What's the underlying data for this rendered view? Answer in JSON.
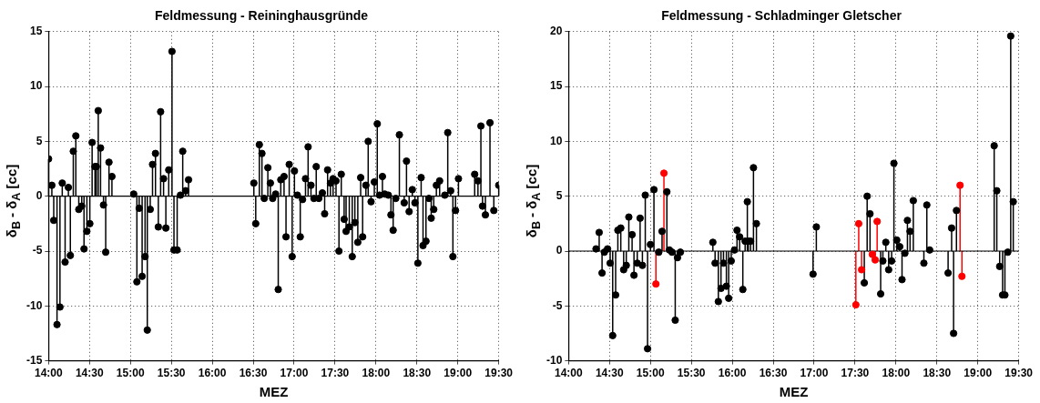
{
  "chart_data": [
    {
      "type": "lollipop",
      "title": "Feldmessung - Reininghausgründe",
      "xlabel": "MEZ",
      "ylabel": "δ$_{B}$ - δ$_{A}$ [cc]",
      "xlim": [
        14,
        19.5
      ],
      "xticks": [
        {
          "value": 14,
          "label": "14:00"
        },
        {
          "value": 14.5,
          "label": "14:30"
        },
        {
          "value": 15,
          "label": "15:00"
        },
        {
          "value": 15.5,
          "label": "15:30"
        },
        {
          "value": 16,
          "label": "16:00"
        },
        {
          "value": 16.5,
          "label": "16:30"
        },
        {
          "value": 17,
          "label": "17:00"
        },
        {
          "value": 17.5,
          "label": "17:30"
        },
        {
          "value": 18,
          "label": "18:00"
        },
        {
          "value": 18.5,
          "label": "18:30"
        },
        {
          "value": 19,
          "label": "19:00"
        },
        {
          "value": 19.5,
          "label": "19:30"
        }
      ],
      "ylim": [
        -15,
        15
      ],
      "yticks": [
        -15,
        -10,
        -5,
        0,
        5,
        10,
        15
      ],
      "grid": true,
      "marker": "circle",
      "series": [
        {
          "color": "#000000",
          "x": [
            14.0,
            14.04,
            14.063,
            14.103,
            14.139,
            14.167,
            14.202,
            14.242,
            14.266,
            14.302,
            14.333,
            14.369,
            14.405,
            14.433,
            14.468,
            14.504,
            14.532,
            14.567,
            14.583,
            14.607,
            14.635,
            14.671,
            14.698,
            14.738,
            14.774,
            15.04,
            15.079,
            15.107,
            15.143,
            15.179,
            15.206,
            15.242,
            15.27,
            15.306,
            15.341,
            15.369,
            15.405,
            15.433,
            15.468,
            15.508,
            15.532,
            15.571,
            15.611,
            15.639,
            15.675,
            15.71,
            16.508,
            16.531,
            16.575,
            16.607,
            16.635,
            16.679,
            16.71,
            16.738,
            16.774,
            16.806,
            16.837,
            16.877,
            16.901,
            16.94,
            16.976,
            17.004,
            17.04,
            17.075,
            17.103,
            17.139,
            17.171,
            17.206,
            17.242,
            17.27,
            17.302,
            17.345,
            17.373,
            17.409,
            17.444,
            17.476,
            17.512,
            17.548,
            17.576,
            17.611,
            17.635,
            17.674,
            17.71,
            17.742,
            17.778,
            17.813,
            17.837,
            17.877,
            17.905,
            17.94,
            17.98,
            18.016,
            18.044,
            18.079,
            18.107,
            18.151,
            18.183,
            18.21,
            18.242,
            18.286,
            18.345,
            18.373,
            18.405,
            18.444,
            18.476,
            18.512,
            18.552,
            18.575,
            18.611,
            18.647,
            18.675,
            18.706,
            18.738,
            18.778,
            18.841,
            18.877,
            18.913,
            18.94,
            18.972,
            19.008,
            19.206,
            19.246,
            19.282,
            19.302,
            19.337,
            19.393,
            19.44,
            19.5
          ],
          "values": [
            3.4,
            1.0,
            -2.2,
            -11.7,
            -10.1,
            1.2,
            -6.0,
            0.8,
            -5.4,
            4.1,
            5.5,
            -1.2,
            -0.9,
            -4.8,
            -3.2,
            -2.5,
            4.9,
            2.7,
            2.7,
            7.8,
            4.4,
            -0.8,
            -5.1,
            3.1,
            1.8,
            0.2,
            -7.8,
            -1.1,
            -7.3,
            -5.5,
            -12.2,
            -1.2,
            2.9,
            3.9,
            -2.8,
            7.7,
            1.6,
            -2.9,
            2.4,
            13.2,
            -4.9,
            -4.9,
            0.1,
            4.1,
            0.5,
            1.5,
            1.2,
            -2.5,
            4.7,
            3.9,
            -0.2,
            2.6,
            1.2,
            -0.2,
            0.2,
            -8.5,
            1.5,
            1.8,
            -3.7,
            2.9,
            -5.5,
            2.3,
            0.1,
            -3.7,
            -0.3,
            1.6,
            4.5,
            1.0,
            -0.2,
            2.7,
            -0.2,
            0.3,
            -1.6,
            2.4,
            1.2,
            1.6,
            1.4,
            -5.0,
            2.0,
            -2.1,
            -3.2,
            -2.8,
            -5.5,
            -2.4,
            -4.2,
            1.7,
            -3.7,
            1.0,
            5.0,
            -0.5,
            1.3,
            6.6,
            0.1,
            1.8,
            0.2,
            0.1,
            -1.7,
            -3.1,
            -0.2,
            5.6,
            -0.6,
            3.2,
            -1.4,
            0.6,
            -0.6,
            -6.1,
            1.7,
            -4.5,
            -4.1,
            -0.2,
            -2.0,
            -1.2,
            1.0,
            1.4,
            0.1,
            5.8,
            0.5,
            -5.5,
            -1.3,
            1.6,
            2.0,
            1.4,
            6.4,
            -0.9,
            -1.7,
            6.7,
            -1.3,
            1.0
          ]
        }
      ]
    },
    {
      "type": "lollipop",
      "title": "Feldmessung - Schladminger Gletscher",
      "xlabel": "MEZ",
      "ylabel": "δ$_{B}$ - δ$_{A}$ [cc]",
      "xlim": [
        14,
        19.5
      ],
      "xticks": [
        {
          "value": 14,
          "label": "14:00"
        },
        {
          "value": 14.5,
          "label": "14:30"
        },
        {
          "value": 15,
          "label": "15:00"
        },
        {
          "value": 15.5,
          "label": "15:30"
        },
        {
          "value": 16,
          "label": "16:00"
        },
        {
          "value": 16.5,
          "label": "16:30"
        },
        {
          "value": 17,
          "label": "17:00"
        },
        {
          "value": 17.5,
          "label": "17:30"
        },
        {
          "value": 18,
          "label": "18:00"
        },
        {
          "value": 18.5,
          "label": "18:30"
        },
        {
          "value": 19,
          "label": "19:00"
        },
        {
          "value": 19.5,
          "label": "19:30"
        }
      ],
      "ylim": [
        -10,
        20
      ],
      "yticks": [
        -10,
        -5,
        0,
        5,
        10,
        15,
        20
      ],
      "grid": true,
      "marker": "circle",
      "series": [
        {
          "color": "#000000",
          "x": [
            14.335,
            14.374,
            14.409,
            14.437,
            14.476,
            14.508,
            14.539,
            14.575,
            14.602,
            14.638,
            14.673,
            14.705,
            14.736,
            14.776,
            14.799,
            14.839,
            14.874,
            14.902,
            14.937,
            14.965,
            15.0,
            15.043,
            15.102,
            15.142,
            15.201,
            15.232,
            15.264,
            15.303,
            15.331,
            15.366,
            15.763,
            15.79,
            15.83,
            15.862,
            15.893,
            15.928,
            15.956,
            15.987,
            16.027,
            16.058,
            16.09,
            16.129,
            16.157,
            16.184,
            16.196,
            16.224,
            16.259,
            16.295,
            16.987,
            17.027,
            17.613,
            17.648,
            17.683,
            17.813,
            17.84,
            17.876,
            17.911,
            17.947,
            17.975,
            18.01,
            18.046,
            18.074,
            18.109,
            18.14,
            18.172,
            18.212,
            18.341,
            18.377,
            18.412,
            18.637,
            18.68,
            18.704,
            18.739,
            19.2,
            19.232,
            19.267,
            19.303,
            19.331,
            19.366,
            19.402,
            19.433
          ],
          "values": [
            0.2,
            1.7,
            -2.0,
            -0.1,
            0.2,
            -1.1,
            -7.7,
            -4.0,
            1.9,
            2.1,
            -1.7,
            -1.3,
            3.1,
            1.5,
            -2.2,
            -1.1,
            3.0,
            -1.3,
            5.1,
            -8.9,
            0.6,
            5.6,
            -0.1,
            1.8,
            5.4,
            0.1,
            -0.1,
            -6.3,
            -0.6,
            -0.1,
            0.8,
            -1.1,
            -4.6,
            -3.4,
            -1.1,
            -3.2,
            -4.3,
            -0.9,
            0.1,
            1.9,
            1.3,
            -3.5,
            0.9,
            4.5,
            0.9,
            0.9,
            7.6,
            2.5,
            -2.1,
            2.2,
            -2.9,
            5.0,
            3.4,
            -3.9,
            -0.9,
            0.8,
            -1.7,
            -0.9,
            8.0,
            1.0,
            0.4,
            -2.6,
            -0.2,
            2.8,
            1.8,
            4.6,
            -1.1,
            4.2,
            0.1,
            -2.0,
            2.1,
            -7.5,
            3.7,
            9.6,
            5.5,
            -1.4,
            -4.0,
            -4.0,
            -0.1,
            19.6,
            4.5
          ]
        },
        {
          "color": "#ff0000",
          "x": [
            15.067,
            15.165,
            17.51,
            17.545,
            17.58,
            17.711,
            17.746,
            17.77,
            18.783,
            18.806
          ],
          "values": [
            -3.0,
            7.1,
            -4.9,
            2.5,
            -1.7,
            -0.3,
            -0.8,
            2.7,
            6.0,
            -2.3
          ]
        }
      ]
    }
  ]
}
